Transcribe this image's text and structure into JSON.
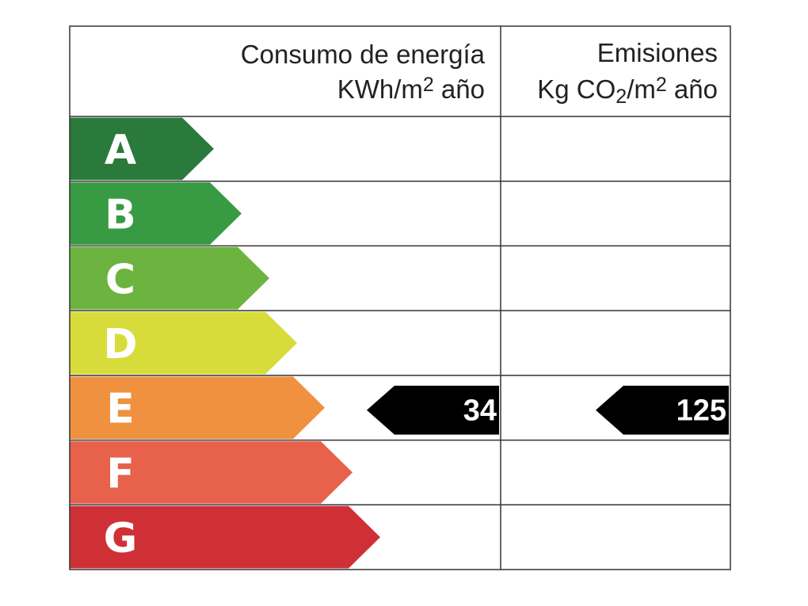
{
  "header": {
    "energy": {
      "title": "Consumo de energía",
      "unit": [
        "KWh/m",
        "2",
        " año"
      ]
    },
    "emissions": {
      "title": "Emisiones",
      "unit": [
        "Kg CO",
        "2",
        "/m",
        "2",
        " año"
      ]
    }
  },
  "classes": [
    {
      "letter": "A",
      "color": "#2a7a3b"
    },
    {
      "letter": "B",
      "color": "#389b43"
    },
    {
      "letter": "C",
      "color": "#6cb43f"
    },
    {
      "letter": "D",
      "color": "#d7dc3b"
    },
    {
      "letter": "E",
      "color": "#f0913f"
    },
    {
      "letter": "F",
      "color": "#e8614b"
    },
    {
      "letter": "G",
      "color": "#cf3036"
    }
  ],
  "energy_rating": {
    "class": "E",
    "value": 34
  },
  "emissions_rating": {
    "class": "E",
    "value": 125
  }
}
